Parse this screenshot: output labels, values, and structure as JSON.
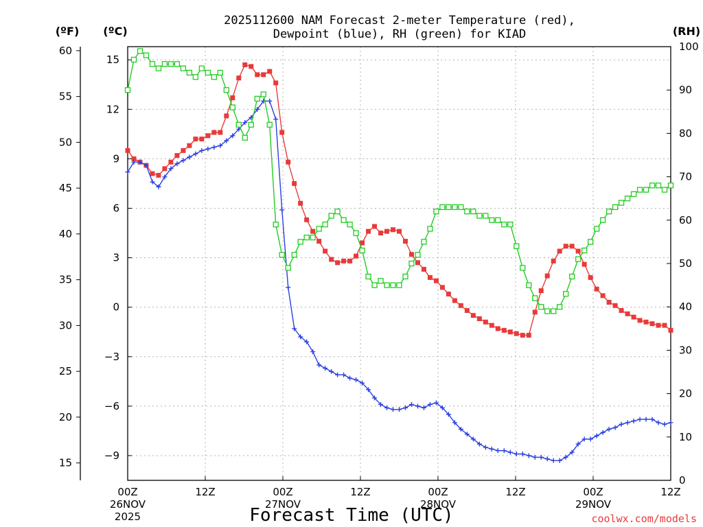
{
  "chart_data": {
    "type": "line",
    "title_line1": "2025112600 NAM Forecast 2-meter Temperature (red),",
    "title_line2": "Dewpoint (blue), RH (green) for KIAD",
    "xlabel": "Forecast Time (UTC)",
    "credit": "coolwx.com/models",
    "credit_color": "#e83a3a",
    "unit_left_outer": "(ºF)",
    "unit_left_inner": "(ºC)",
    "unit_right": "(RH)",
    "x_range_hours": [
      0,
      84
    ],
    "x_ticks": [
      {
        "hour": 0,
        "lines": [
          "00Z",
          "26NOV",
          "2025"
        ]
      },
      {
        "hour": 12,
        "lines": [
          "12Z"
        ]
      },
      {
        "hour": 24,
        "lines": [
          "00Z",
          "27NOV"
        ]
      },
      {
        "hour": 36,
        "lines": [
          "12Z"
        ]
      },
      {
        "hour": 48,
        "lines": [
          "00Z",
          "28NOV"
        ]
      },
      {
        "hour": 60,
        "lines": [
          "12Z"
        ]
      },
      {
        "hour": 72,
        "lines": [
          "00Z",
          "29NOV"
        ]
      },
      {
        "hour": 84,
        "lines": [
          "12Z"
        ]
      }
    ],
    "y_celsius": {
      "range": [
        -10.5,
        15.8
      ],
      "ticks": [
        -9,
        -6,
        -3,
        0,
        3,
        6,
        9,
        12,
        15
      ]
    },
    "y_fahrenheit": {
      "ticks": [
        15,
        20,
        25,
        30,
        35,
        40,
        45,
        50,
        55,
        60
      ]
    },
    "y_rh": {
      "range": [
        0,
        100
      ],
      "ticks": [
        0,
        10,
        20,
        30,
        40,
        50,
        60,
        70,
        80,
        90,
        100
      ]
    },
    "series": [
      {
        "name": "2-meter Temperature",
        "unit": "°C",
        "color": "#e83a3a",
        "marker": "square",
        "values": [
          9.5,
          9.0,
          8.8,
          8.6,
          8.1,
          8.0,
          8.4,
          8.8,
          9.2,
          9.5,
          9.8,
          10.2,
          10.2,
          10.4,
          10.6,
          10.6,
          11.6,
          12.7,
          13.9,
          14.7,
          14.6,
          14.1,
          14.1,
          14.3,
          13.6,
          10.6,
          8.8,
          7.5,
          6.3,
          5.3,
          4.6,
          4.0,
          3.4,
          2.9,
          2.7,
          2.8,
          2.8,
          3.1,
          3.9,
          4.6,
          4.9,
          4.5,
          4.6,
          4.7,
          4.6,
          4.0,
          3.2,
          2.7,
          2.3,
          1.8,
          1.6,
          1.2,
          0.8,
          0.4,
          0.1,
          -0.2,
          -0.5,
          -0.7,
          -0.9,
          -1.1,
          -1.3,
          -1.4,
          -1.5,
          -1.6,
          -1.7,
          -1.7,
          -0.3,
          1.0,
          1.9,
          2.8,
          3.4,
          3.7,
          3.7,
          3.4,
          2.6,
          1.8,
          1.1,
          0.7,
          0.3,
          0.1,
          -0.2,
          -0.4,
          -0.6,
          -0.8,
          -0.9,
          -1.0,
          -1.1,
          -1.1,
          -1.4
        ]
      },
      {
        "name": "Dewpoint",
        "unit": "°C",
        "color": "#2a3fe0",
        "marker": "plus",
        "values": [
          8.2,
          8.8,
          8.8,
          8.6,
          7.6,
          7.3,
          7.9,
          8.4,
          8.7,
          8.9,
          9.1,
          9.3,
          9.5,
          9.6,
          9.7,
          9.8,
          10.1,
          10.4,
          10.8,
          11.2,
          11.5,
          12.0,
          12.5,
          12.5,
          11.4,
          5.9,
          1.2,
          -1.3,
          -1.8,
          -2.1,
          -2.7,
          -3.5,
          -3.7,
          -3.9,
          -4.1,
          -4.1,
          -4.3,
          -4.4,
          -4.6,
          -5.0,
          -5.5,
          -5.9,
          -6.1,
          -6.2,
          -6.2,
          -6.1,
          -5.9,
          -6.0,
          -6.1,
          -5.9,
          -5.8,
          -6.1,
          -6.5,
          -7.0,
          -7.4,
          -7.7,
          -8.0,
          -8.3,
          -8.5,
          -8.6,
          -8.7,
          -8.7,
          -8.8,
          -8.9,
          -8.9,
          -9.0,
          -9.1,
          -9.1,
          -9.2,
          -9.3,
          -9.3,
          -9.1,
          -8.8,
          -8.3,
          -8.0,
          -8.0,
          -7.8,
          -7.6,
          -7.4,
          -7.3,
          -7.1,
          -7.0,
          -6.9,
          -6.8,
          -6.8,
          -6.8,
          -7.0,
          -7.1,
          -7.0
        ]
      },
      {
        "name": "RH",
        "unit": "%",
        "color": "#22cc22",
        "marker": "square-open",
        "values": [
          90,
          97,
          99,
          98,
          96,
          95,
          96,
          96,
          96,
          95,
          94,
          93,
          95,
          94,
          93,
          94,
          90,
          86,
          82,
          79,
          82,
          88,
          89,
          82,
          59,
          52,
          49,
          52,
          55,
          56,
          56,
          58,
          59,
          61,
          62,
          60,
          59,
          57,
          53,
          47,
          45,
          46,
          45,
          45,
          45,
          47,
          50,
          52,
          55,
          58,
          62,
          63,
          63,
          63,
          63,
          62,
          62,
          61,
          61,
          60,
          60,
          59,
          59,
          54,
          49,
          45,
          42,
          40,
          39,
          39,
          40,
          43,
          47,
          51,
          53,
          55,
          58,
          60,
          62,
          63,
          64,
          65,
          66,
          67,
          67,
          68,
          68,
          67,
          68
        ]
      }
    ]
  }
}
